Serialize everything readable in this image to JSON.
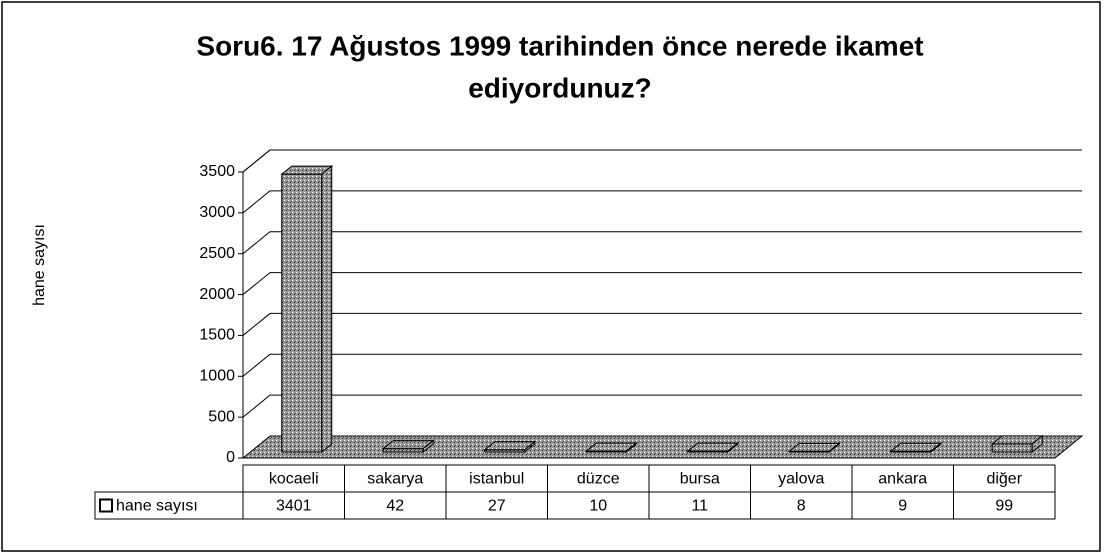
{
  "chart_data": {
    "type": "bar",
    "title_lines": [
      "Soru6. 17 Ağustos 1999 tarihinden önce nerede ikamet",
      "ediyordunuz?"
    ],
    "y_label": "hane sayısı",
    "categories": [
      "kocaeli",
      "sakarya",
      "istanbul",
      "düzce",
      "bursa",
      "yalova",
      "ankara",
      "diğer"
    ],
    "series": [
      {
        "name": "hane sayısı",
        "color": "#8a8a8a",
        "values": [
          3401,
          42,
          27,
          10,
          11,
          8,
          9,
          99
        ]
      }
    ],
    "ylim": [
      0,
      3500
    ],
    "yticks": [
      0,
      500,
      1000,
      1500,
      2000,
      2500,
      3000,
      3500
    ],
    "grid": true
  }
}
